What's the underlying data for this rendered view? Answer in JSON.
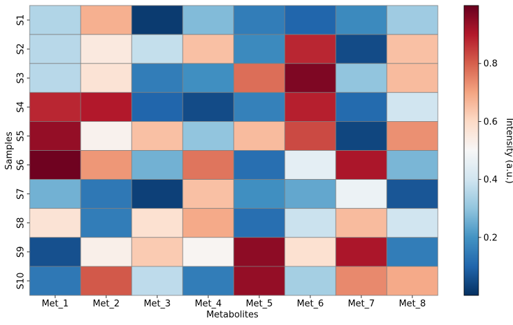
{
  "chart_data": {
    "type": "heatmap",
    "title": "",
    "xlabel": "Metabolites",
    "ylabel": "Samples",
    "x_categories": [
      "Met_1",
      "Met_2",
      "Met_3",
      "Met_4",
      "Met_5",
      "Met_6",
      "Met_7",
      "Met_8"
    ],
    "y_categories": [
      "S1",
      "S2",
      "S3",
      "S4",
      "S5",
      "S6",
      "S7",
      "S8",
      "S9",
      "S10"
    ],
    "values": [
      [
        0.35,
        0.68,
        0.02,
        0.28,
        0.15,
        0.1,
        0.18,
        0.32
      ],
      [
        0.36,
        0.55,
        0.38,
        0.65,
        0.18,
        0.88,
        0.05,
        0.65
      ],
      [
        0.36,
        0.57,
        0.15,
        0.19,
        0.78,
        0.97,
        0.3,
        0.66
      ],
      [
        0.88,
        0.9,
        0.1,
        0.05,
        0.16,
        0.89,
        0.11,
        0.4
      ],
      [
        0.94,
        0.52,
        0.65,
        0.3,
        0.66,
        0.83,
        0.04,
        0.73
      ],
      [
        0.99,
        0.72,
        0.26,
        0.77,
        0.12,
        0.45,
        0.91,
        0.27
      ],
      [
        0.26,
        0.14,
        0.03,
        0.65,
        0.19,
        0.24,
        0.47,
        0.07
      ],
      [
        0.57,
        0.15,
        0.58,
        0.69,
        0.12,
        0.39,
        0.66,
        0.4
      ],
      [
        0.06,
        0.53,
        0.63,
        0.51,
        0.95,
        0.58,
        0.91,
        0.15
      ],
      [
        0.14,
        0.81,
        0.37,
        0.15,
        0.94,
        0.33,
        0.74,
        0.69
      ]
    ],
    "vmin": 0.0,
    "vmax": 1.0,
    "colormap": "RdBu_r",
    "colorbar": {
      "label": "Intensity (a.u.)",
      "ticks": [
        0.2,
        0.4,
        0.6,
        0.8
      ],
      "tick_labels": [
        "0.2",
        "0.4",
        "0.6",
        "0.8"
      ]
    },
    "cell_border_color": "#808080"
  }
}
